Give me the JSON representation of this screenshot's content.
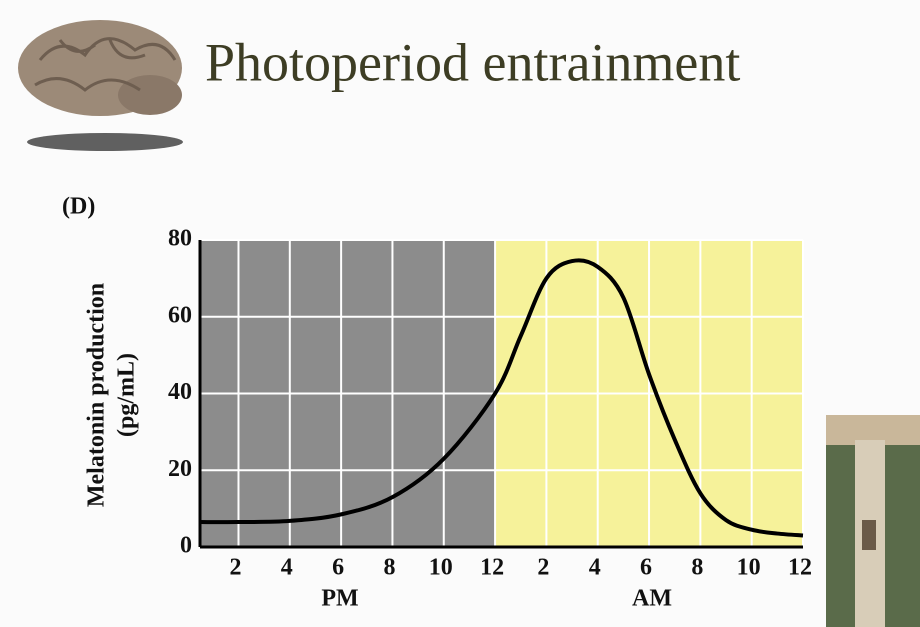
{
  "title": "Photoperiod entrainment",
  "chart_data": {
    "type": "line",
    "panel_label": "(D)",
    "ylabel": [
      "Melatonin production",
      "(pg/mL)"
    ],
    "group_labels": [
      "PM",
      "AM"
    ],
    "x": [
      0.5,
      2,
      4,
      6,
      8,
      10,
      12,
      13,
      14,
      15,
      16,
      17,
      18,
      19,
      20,
      21,
      22,
      23,
      24
    ],
    "values": [
      6.5,
      6.5,
      6.8,
      8.5,
      13,
      23,
      40,
      55,
      70,
      74.5,
      73,
      65,
      45,
      28,
      14,
      7,
      4.5,
      3.5,
      3
    ],
    "color": "#000000",
    "xlim": [
      0.5,
      24
    ],
    "ylim": [
      0,
      80
    ],
    "xticks": [
      2,
      4,
      6,
      8,
      10,
      12,
      {
        "value": 14,
        "label": "2"
      },
      {
        "value": 16,
        "label": "4"
      },
      {
        "value": 18,
        "label": "6"
      },
      {
        "value": 20,
        "label": "8"
      },
      {
        "value": 22,
        "label": "10"
      },
      {
        "value": 24,
        "label": "12"
      }
    ],
    "yticks": [
      0,
      20,
      40,
      60,
      80
    ],
    "grid": true,
    "bands": [
      {
        "x0": 0.5,
        "x1": 12,
        "color": "#8c8c8c"
      },
      {
        "x0": 12,
        "x1": 24,
        "color": "#f6f29a"
      }
    ]
  }
}
